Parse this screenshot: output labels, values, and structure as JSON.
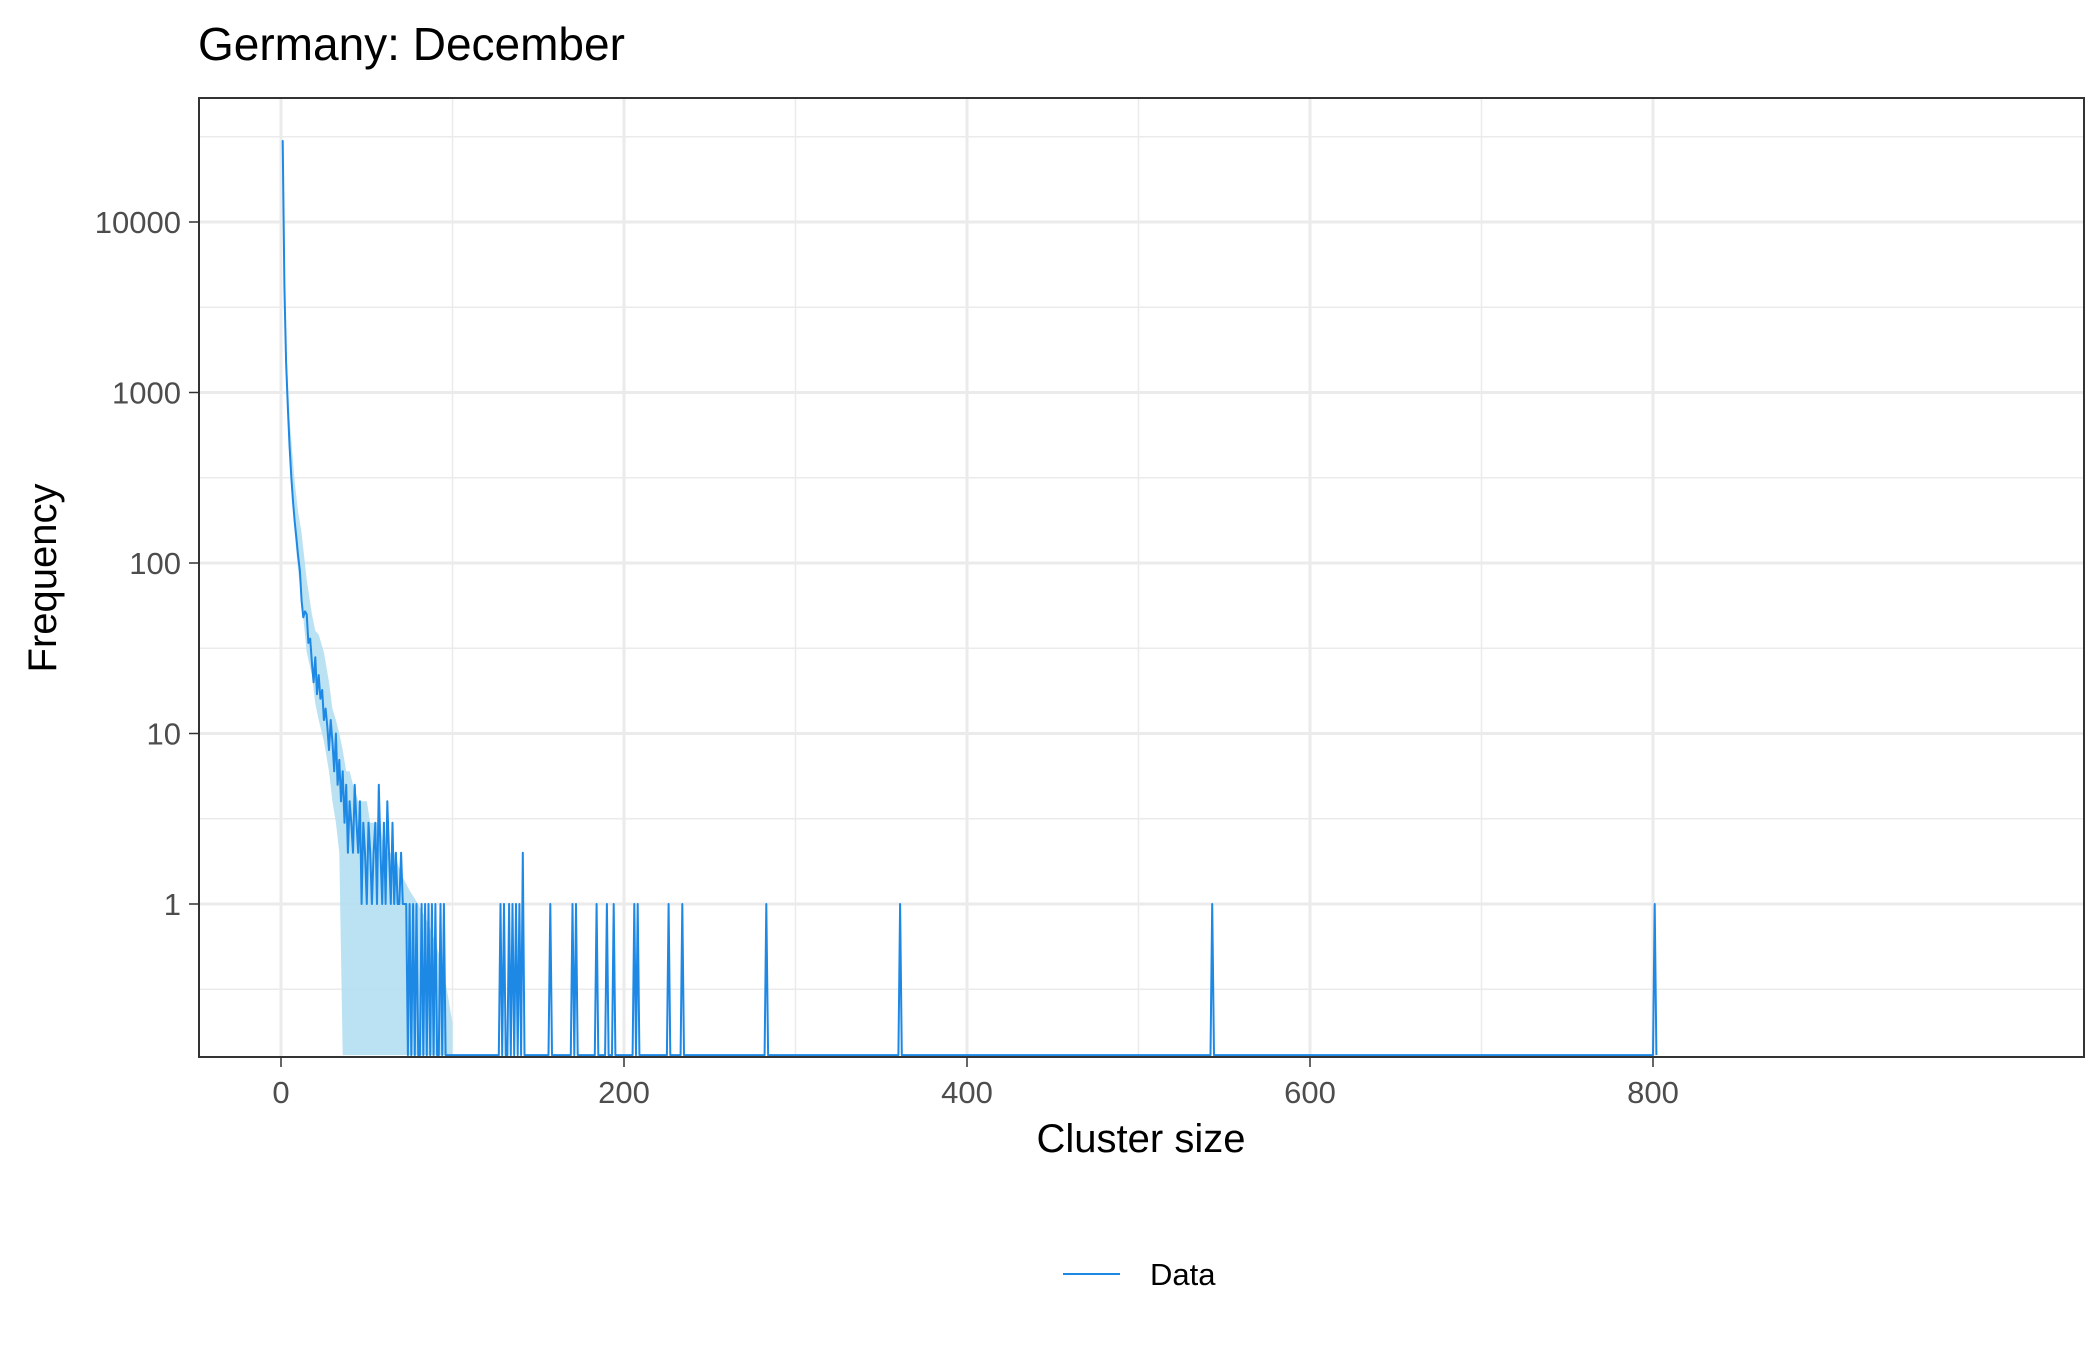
{
  "chart_data": {
    "type": "line",
    "title": "Germany: December",
    "xlabel": "Cluster size",
    "ylabel": "Frequency",
    "x_scale": "linear",
    "y_scale": "log10",
    "xlim": [
      -48,
      841
    ],
    "ylim": [
      0.13,
      48000
    ],
    "x_ticks": [
      0,
      200,
      400,
      600,
      800
    ],
    "x_tick_labels": [
      "0",
      "200",
      "400",
      "600",
      "800"
    ],
    "y_ticks": [
      1,
      10,
      100,
      1000,
      10000
    ],
    "y_tick_labels": [
      "1",
      "10",
      "100",
      "1000",
      "10000"
    ],
    "grid": true,
    "legend_position": "bottom",
    "colors": {
      "data_line": "#1e88e5",
      "band_fill": "#b3dff2",
      "panel_border": "#333333",
      "grid": "#ebebeb"
    },
    "series": [
      {
        "name": "Data",
        "kind": "line",
        "points": [
          [
            1,
            30000
          ],
          [
            2,
            4200
          ],
          [
            3,
            1500
          ],
          [
            4,
            800
          ],
          [
            5,
            480
          ],
          [
            6,
            320
          ],
          [
            7,
            230
          ],
          [
            8,
            175
          ],
          [
            9,
            140
          ],
          [
            10,
            110
          ],
          [
            11,
            90
          ],
          [
            12,
            60
          ],
          [
            13,
            48
          ],
          [
            14,
            52
          ],
          [
            15,
            50
          ],
          [
            16,
            34
          ],
          [
            17,
            36
          ],
          [
            18,
            26
          ],
          [
            19,
            20
          ],
          [
            20,
            28
          ],
          [
            21,
            17
          ],
          [
            22,
            22
          ],
          [
            23,
            16
          ],
          [
            24,
            18
          ],
          [
            25,
            12
          ],
          [
            26,
            14
          ],
          [
            27,
            11
          ],
          [
            28,
            8
          ],
          [
            29,
            12
          ],
          [
            30,
            9
          ],
          [
            31,
            6
          ],
          [
            32,
            10
          ],
          [
            33,
            5
          ],
          [
            34,
            7
          ],
          [
            35,
            4
          ],
          [
            36,
            6
          ],
          [
            37,
            3
          ],
          [
            38,
            5
          ],
          [
            39,
            2
          ],
          [
            40,
            4
          ],
          [
            41,
            3
          ],
          [
            42,
            2
          ],
          [
            43,
            5
          ],
          [
            44,
            3
          ],
          [
            45,
            2
          ],
          [
            46,
            4
          ],
          [
            47,
            1
          ],
          [
            48,
            3
          ],
          [
            49,
            2
          ],
          [
            50,
            1
          ],
          [
            51,
            3
          ],
          [
            52,
            2
          ],
          [
            53,
            1
          ],
          [
            54,
            2
          ],
          [
            55,
            3
          ],
          [
            56,
            1
          ],
          [
            57,
            5
          ],
          [
            58,
            2
          ],
          [
            59,
            1
          ],
          [
            60,
            3
          ],
          [
            61,
            1
          ],
          [
            62,
            4
          ],
          [
            63,
            2
          ],
          [
            64,
            1
          ],
          [
            65,
            3
          ],
          [
            66,
            1
          ],
          [
            67,
            2
          ],
          [
            68,
            1
          ],
          [
            69,
            1
          ],
          [
            70,
            2
          ],
          [
            71,
            1
          ],
          [
            72,
            1
          ],
          [
            73,
            1
          ],
          [
            75,
            1
          ],
          [
            77,
            1
          ],
          [
            79,
            1
          ],
          [
            82,
            1
          ],
          [
            84,
            1
          ],
          [
            86,
            1
          ],
          [
            88,
            1
          ],
          [
            90,
            1
          ],
          [
            93,
            1
          ],
          [
            95,
            1
          ],
          [
            128,
            1
          ],
          [
            130,
            1
          ],
          [
            133,
            1
          ],
          [
            135,
            1
          ],
          [
            137,
            1
          ],
          [
            139,
            1
          ],
          [
            141,
            2
          ],
          [
            157,
            1
          ],
          [
            170,
            1
          ],
          [
            172,
            1
          ],
          [
            184,
            1
          ],
          [
            190,
            1
          ],
          [
            194,
            1
          ],
          [
            206,
            1
          ],
          [
            208,
            1
          ],
          [
            226,
            1
          ],
          [
            234,
            1
          ],
          [
            283,
            1
          ],
          [
            361,
            1
          ],
          [
            543,
            1
          ],
          [
            801,
            1
          ]
        ]
      },
      {
        "name": "",
        "kind": "band",
        "x": [
          1,
          3,
          5,
          8,
          10,
          12,
          15,
          18,
          20,
          22,
          25,
          28,
          30,
          32,
          34,
          36,
          38,
          40,
          42,
          45,
          48,
          50,
          52,
          55,
          58,
          60,
          63,
          66,
          70,
          75,
          80,
          85,
          90,
          95,
          100
        ],
        "upper": [
          30000,
          2000,
          700,
          300,
          200,
          150,
          80,
          50,
          40,
          38,
          30,
          20,
          14,
          12,
          10,
          8,
          6,
          6,
          5,
          4,
          4,
          4,
          3,
          3,
          3,
          2,
          2,
          2,
          1.5,
          1.2,
          1,
          0.8,
          0.6,
          0.4,
          0.2
        ],
        "lower": [
          30000,
          1200,
          400,
          150,
          90,
          60,
          30,
          22,
          15,
          12,
          9,
          6,
          4,
          3,
          2,
          0.13,
          0.13,
          0.13,
          0.13,
          0.13,
          0.13,
          0.13,
          0.13,
          0.13,
          0.13,
          0.13,
          0.13,
          0.13,
          0.13,
          0.13,
          0.13,
          0.13,
          0.13,
          0.13,
          0.13
        ]
      }
    ]
  }
}
